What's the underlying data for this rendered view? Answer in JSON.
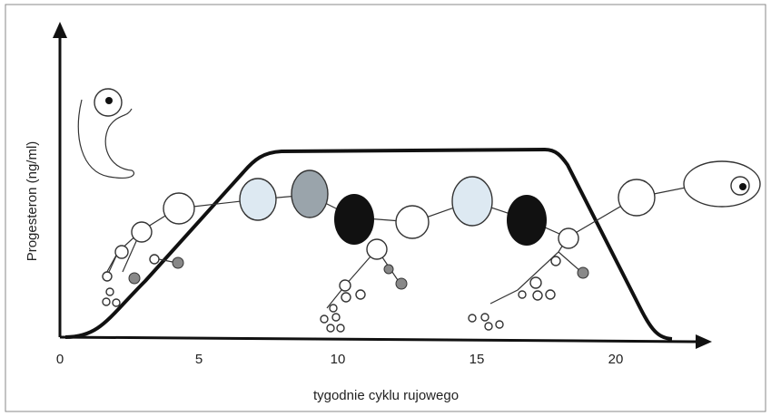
{
  "axes": {
    "y_label": "Progesteron (ng/ml)",
    "x_label": "tygodnie cyklu rujowego",
    "x_ticks": [
      0,
      5,
      10,
      15,
      20
    ]
  }
}
